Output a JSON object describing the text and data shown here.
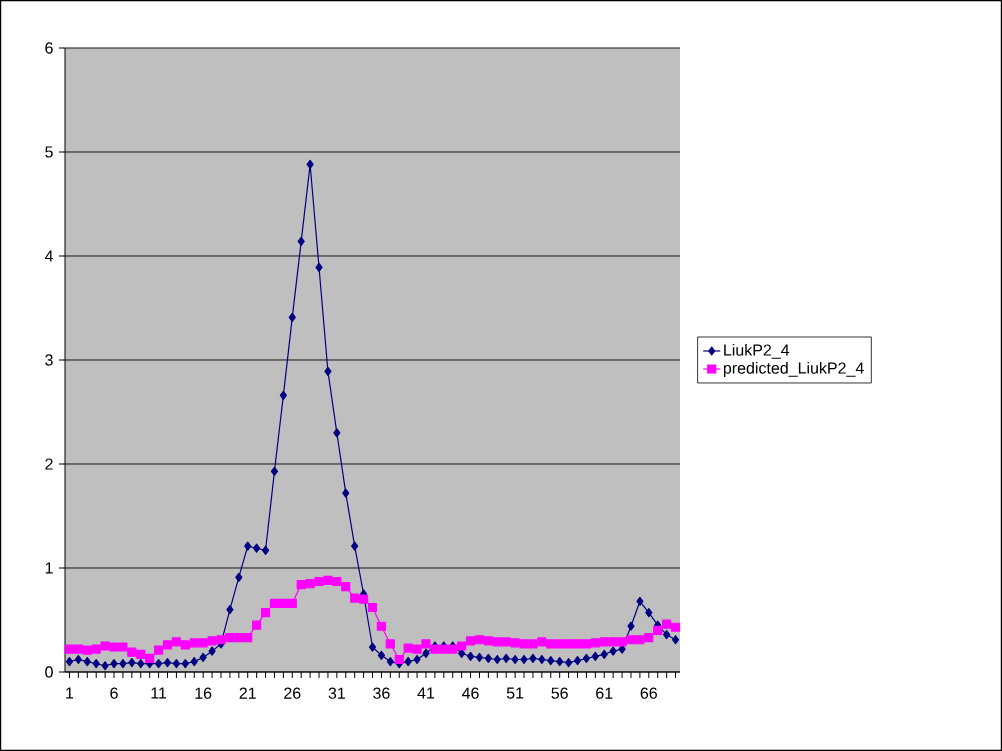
{
  "chart_data": {
    "type": "line",
    "categories": [
      "1",
      null,
      null,
      null,
      null,
      "6",
      null,
      null,
      null,
      null,
      "11",
      null,
      null,
      null,
      null,
      "16",
      null,
      null,
      null,
      null,
      "21",
      null,
      null,
      null,
      null,
      "26",
      null,
      null,
      null,
      null,
      "31",
      null,
      null,
      null,
      null,
      "36",
      null,
      null,
      null,
      null,
      "41",
      null,
      null,
      null,
      null,
      "46",
      null,
      null,
      null,
      null,
      "51",
      null,
      null,
      null,
      null,
      "56",
      null,
      null,
      null,
      null,
      "61",
      null,
      null,
      null,
      null,
      "66",
      null,
      null,
      null
    ],
    "series": [
      {
        "name": "LiukP2_4",
        "color": "#000080",
        "marker": "diamond",
        "values": [
          0.1,
          0.12,
          0.1,
          0.08,
          0.06,
          0.08,
          0.08,
          0.09,
          0.08,
          0.08,
          0.08,
          0.09,
          0.08,
          0.08,
          0.1,
          0.14,
          0.2,
          0.27,
          0.6,
          0.91,
          1.21,
          1.19,
          1.17,
          1.93,
          2.66,
          3.41,
          4.14,
          4.88,
          3.89,
          2.89,
          2.3,
          1.72,
          1.21,
          0.75,
          0.24,
          0.16,
          0.1,
          0.08,
          0.1,
          0.12,
          0.18,
          0.25,
          0.25,
          0.25,
          0.18,
          0.15,
          0.14,
          0.13,
          0.12,
          0.13,
          0.12,
          0.12,
          0.13,
          0.12,
          0.11,
          0.1,
          0.09,
          0.11,
          0.13,
          0.15,
          0.17,
          0.2,
          0.22,
          0.44,
          0.68,
          0.57,
          0.45,
          0.36,
          0.31
        ]
      },
      {
        "name": "predicted_LiukP2_4",
        "color": "#ff00ff",
        "marker": "square",
        "values": [
          0.22,
          0.22,
          0.21,
          0.22,
          0.25,
          0.24,
          0.24,
          0.19,
          0.17,
          0.13,
          0.21,
          0.26,
          0.29,
          0.26,
          0.28,
          0.28,
          0.3,
          0.31,
          0.33,
          0.33,
          0.33,
          0.45,
          0.57,
          0.66,
          0.66,
          0.66,
          0.84,
          0.85,
          0.87,
          0.88,
          0.87,
          0.82,
          0.71,
          0.7,
          0.62,
          0.44,
          0.27,
          0.12,
          0.23,
          0.22,
          0.27,
          0.22,
          0.22,
          0.22,
          0.25,
          0.3,
          0.31,
          0.3,
          0.29,
          0.29,
          0.28,
          0.27,
          0.27,
          0.29,
          0.27,
          0.27,
          0.27,
          0.27,
          0.27,
          0.28,
          0.29,
          0.29,
          0.29,
          0.31,
          0.31,
          0.33,
          0.4,
          0.46,
          0.43
        ]
      }
    ],
    "ylim": [
      0,
      6
    ],
    "yticks": [
      0,
      1,
      2,
      3,
      4,
      5,
      6
    ],
    "grid": "y",
    "legend": "right",
    "line_style": "solid"
  }
}
